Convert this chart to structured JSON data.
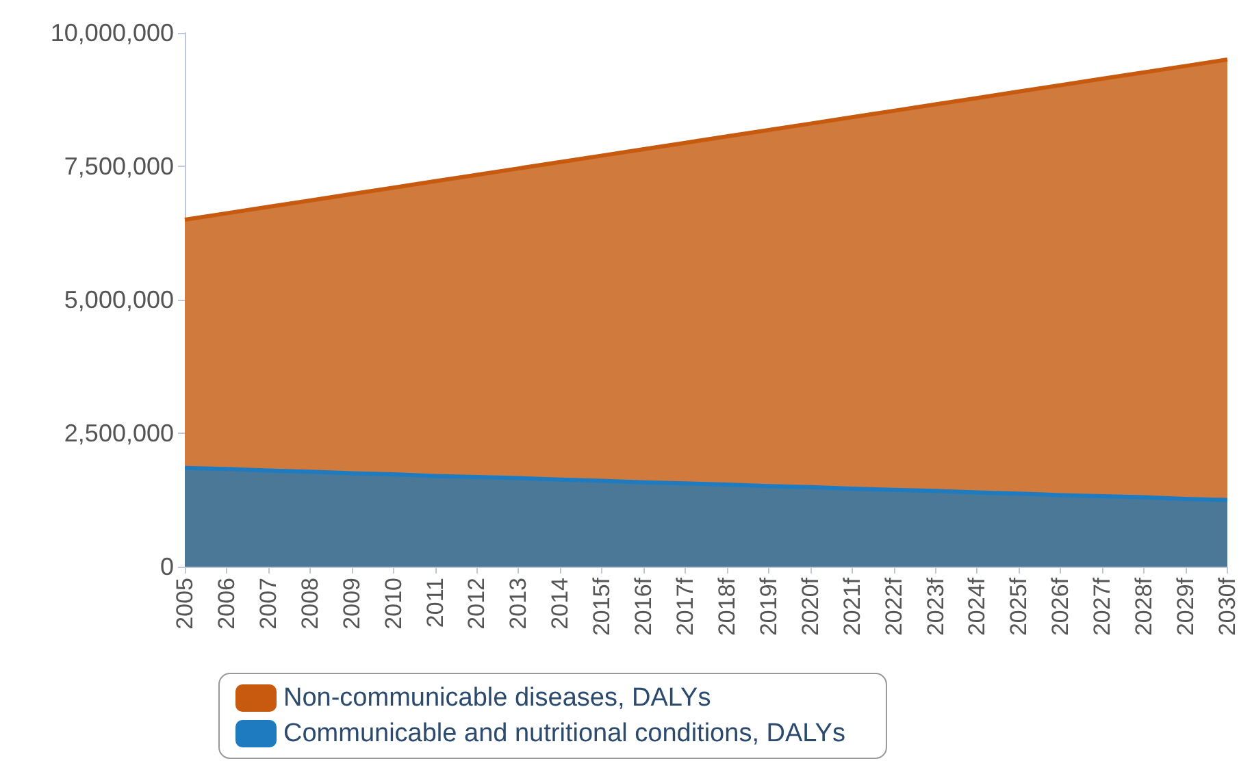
{
  "chart_data": {
    "type": "area",
    "stacked": true,
    "categories": [
      "2005",
      "2006",
      "2007",
      "2008",
      "2009",
      "2010",
      "2011",
      "2012",
      "2013",
      "2014",
      "2015f",
      "2016f",
      "2017f",
      "2018f",
      "2019f",
      "2020f",
      "2021f",
      "2022f",
      "2023f",
      "2024f",
      "2025f",
      "2026f",
      "2027f",
      "2028f",
      "2029f",
      "2030f"
    ],
    "series": [
      {
        "name": "Communicable and nutritional conditions, DALYs",
        "color": "#1f7bbf",
        "values": [
          1850000,
          1830000,
          1800000,
          1780000,
          1750000,
          1730000,
          1700000,
          1680000,
          1660000,
          1630000,
          1610000,
          1580000,
          1560000,
          1540000,
          1510000,
          1490000,
          1460000,
          1440000,
          1420000,
          1390000,
          1370000,
          1340000,
          1320000,
          1300000,
          1270000,
          1250000
        ]
      },
      {
        "name": "Non-communicable diseases, DALYs",
        "color": "#c85a10",
        "values": [
          4650000,
          4790000,
          4940000,
          5080000,
          5230000,
          5370000,
          5520000,
          5660000,
          5800000,
          5950000,
          6090000,
          6240000,
          6380000,
          6520000,
          6670000,
          6810000,
          6960000,
          7100000,
          7240000,
          7390000,
          7530000,
          7680000,
          7820000,
          7960000,
          8110000,
          8250000
        ]
      }
    ],
    "ylim": [
      0,
      10000000
    ],
    "yticks": [
      0,
      {
        "value": 2500000,
        "label": "2,500,000"
      },
      {
        "value": 5000000,
        "label": "5,000,000"
      },
      {
        "value": 7500000,
        "label": "7,500,000"
      },
      {
        "value": 10000000,
        "label": "10,000,000"
      }
    ],
    "grid": false,
    "legend": "bottom",
    "marker": "none"
  }
}
